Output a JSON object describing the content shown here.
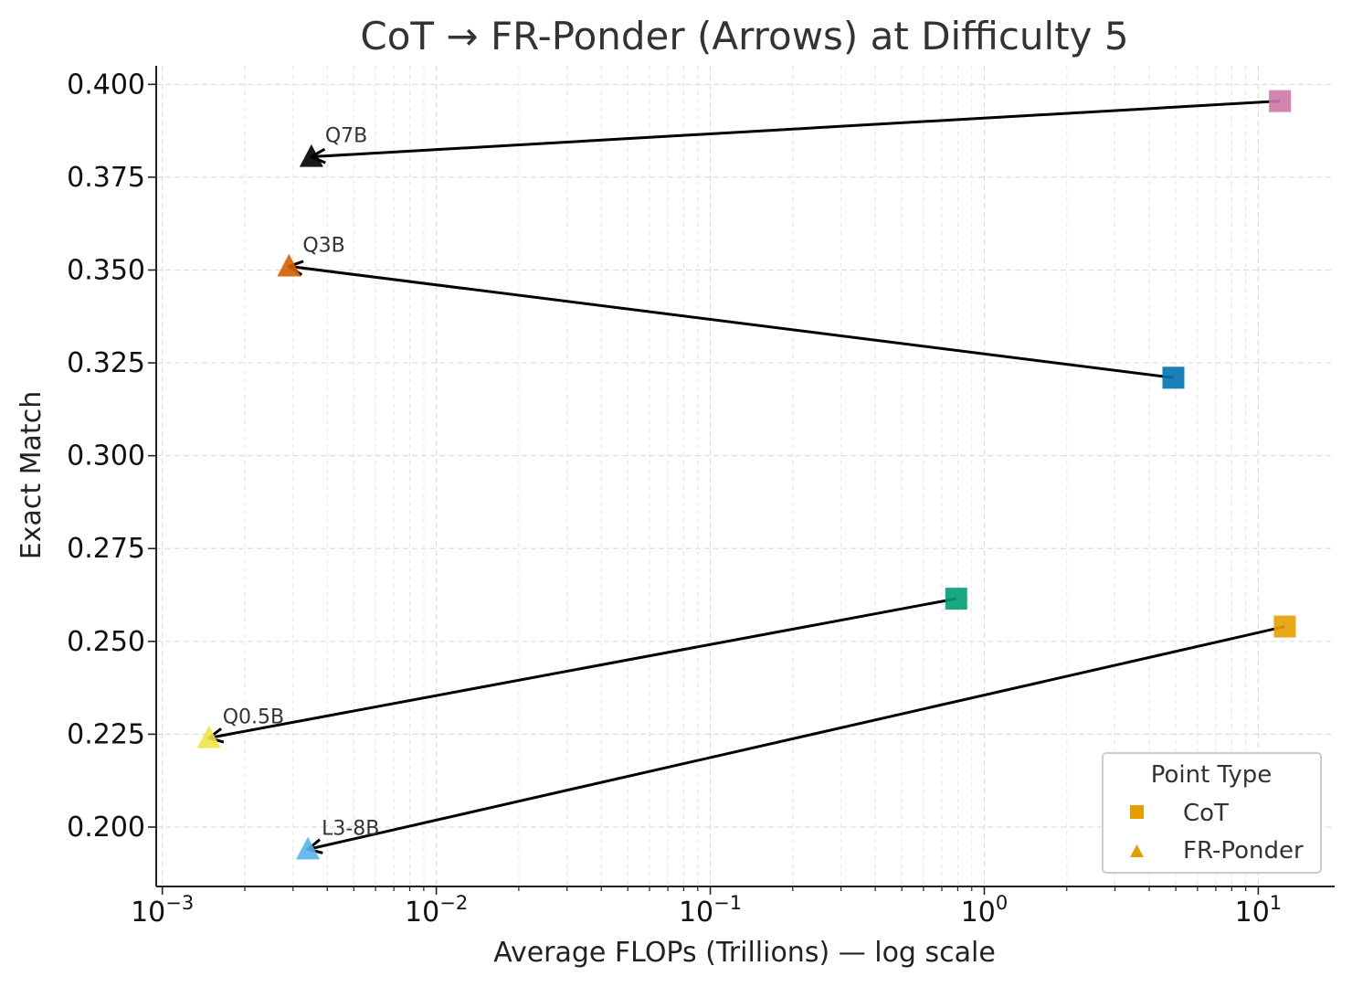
{
  "chart_data": {
    "type": "scatter",
    "title": "CoT → FR-Ponder (Arrows) at Difficulty 5",
    "xlabel": "Average FLOPs (Trillions) — log scale",
    "ylabel": "Exact Match",
    "xscale": "log",
    "xlim": [
      0.00095,
      19
    ],
    "ylim": [
      0.184,
      0.405
    ],
    "x_ticks": [
      {
        "value": 0.001,
        "base": "10",
        "exp": "−3"
      },
      {
        "value": 0.01,
        "base": "10",
        "exp": "−2"
      },
      {
        "value": 0.1,
        "base": "10",
        "exp": "−1"
      },
      {
        "value": 1,
        "base": "10",
        "exp": "0"
      },
      {
        "value": 10,
        "base": "10",
        "exp": "1"
      }
    ],
    "y_ticks": [
      {
        "value": 0.2,
        "label": "0.200"
      },
      {
        "value": 0.225,
        "label": "0.225"
      },
      {
        "value": 0.25,
        "label": "0.250"
      },
      {
        "value": 0.275,
        "label": "0.275"
      },
      {
        "value": 0.3,
        "label": "0.300"
      },
      {
        "value": 0.325,
        "label": "0.325"
      },
      {
        "value": 0.35,
        "label": "0.350"
      },
      {
        "value": 0.375,
        "label": "0.375"
      },
      {
        "value": 0.4,
        "label": "0.400"
      }
    ],
    "grid": true,
    "legend": {
      "title": "Point Type",
      "position": "lower-right",
      "entries": [
        {
          "label": "CoT",
          "marker": "square",
          "color": "#e69f00"
        },
        {
          "label": "FR-Ponder",
          "marker": "triangle",
          "color": "#e69f00"
        }
      ]
    },
    "series": [
      {
        "name": "Q7B",
        "color": "#cc79a7",
        "ponder_color": "#000000",
        "cot": {
          "x": 12.0,
          "y": 0.3955
        },
        "fr_ponder": {
          "x": 0.0035,
          "y": 0.3805
        }
      },
      {
        "name": "Q3B",
        "color": "#0072b2",
        "ponder_color": "#d55e00",
        "cot": {
          "x": 4.9,
          "y": 0.321
        },
        "fr_ponder": {
          "x": 0.0029,
          "y": 0.351
        }
      },
      {
        "name": "Q0.5B",
        "color": "#009e73",
        "ponder_color": "#f0e442",
        "cot": {
          "x": 0.79,
          "y": 0.2615
        },
        "fr_ponder": {
          "x": 0.00148,
          "y": 0.224
        }
      },
      {
        "name": "L3-8B",
        "color": "#e69f00",
        "ponder_color": "#56b4e9",
        "cot": {
          "x": 12.5,
          "y": 0.254
        },
        "fr_ponder": {
          "x": 0.0034,
          "y": 0.194
        }
      }
    ]
  }
}
